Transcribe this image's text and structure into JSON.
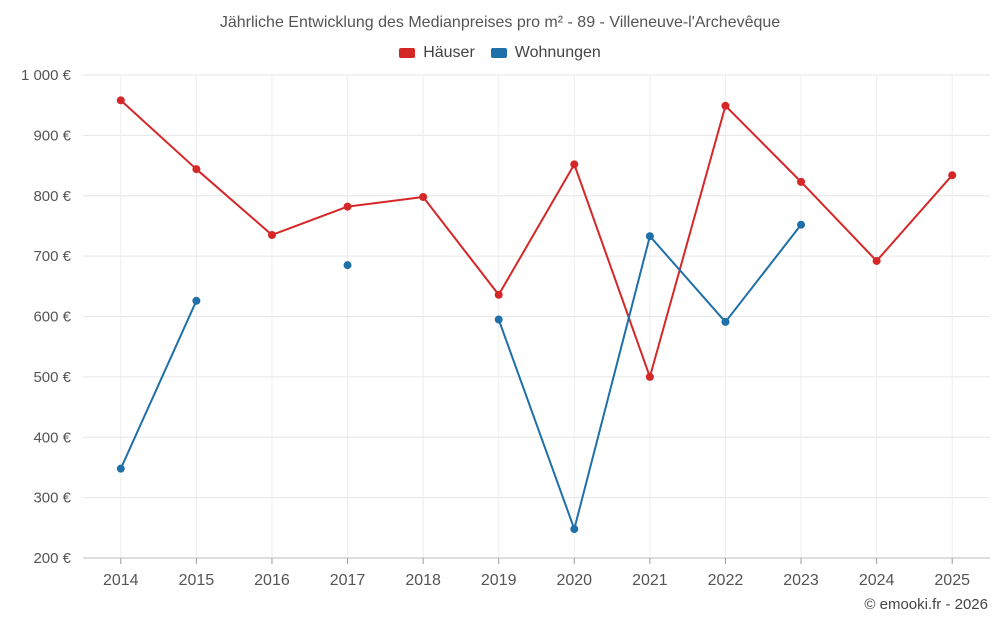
{
  "chart_data": {
    "type": "line",
    "title": "Jährliche Entwicklung des Medianpreises pro m² - 89 - Villeneuve-l'Archevêque",
    "categories": [
      "2014",
      "2015",
      "2016",
      "2017",
      "2018",
      "2019",
      "2020",
      "2021",
      "2022",
      "2023",
      "2024",
      "2025"
    ],
    "ylim": [
      200,
      1000
    ],
    "yticks": [
      200,
      300,
      400,
      500,
      600,
      700,
      800,
      900,
      1000
    ],
    "ytick_labels": [
      "200 €",
      "300 €",
      "400 €",
      "500 €",
      "600 €",
      "700 €",
      "800 €",
      "900 €",
      "1 000 €"
    ],
    "grid": true,
    "legend_position": "top-center",
    "series": [
      {
        "name": "Häuser",
        "color": "#d62728",
        "values": [
          958,
          844,
          735,
          782,
          798,
          636,
          852,
          500,
          949,
          823,
          692,
          834
        ]
      },
      {
        "name": "Wohnungen",
        "color": "#1f6fa8",
        "values": [
          348,
          626,
          null,
          685,
          null,
          595,
          248,
          733,
          591,
          752,
          null,
          null
        ]
      }
    ]
  },
  "credit": "© emooki.fr - 2026"
}
